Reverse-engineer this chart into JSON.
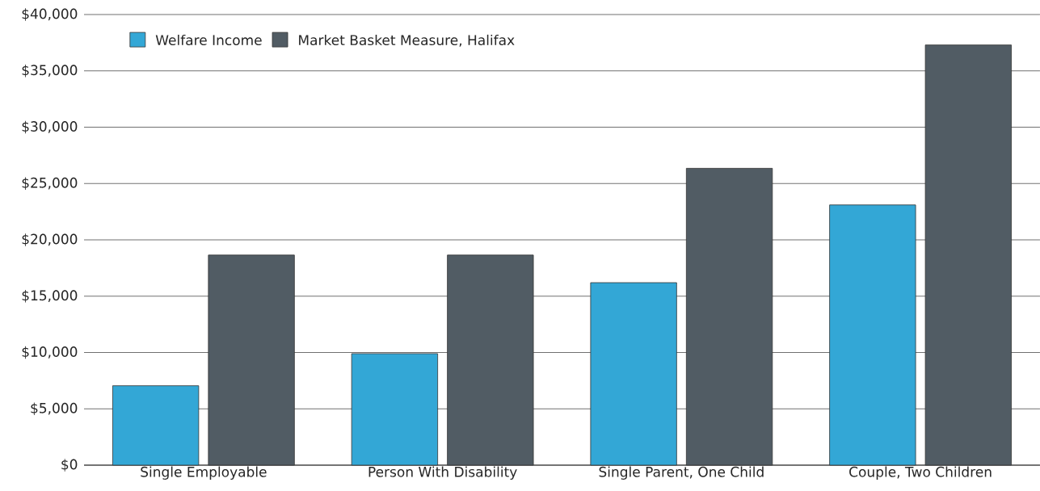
{
  "chart_data": {
    "type": "bar",
    "categories": [
      "Single Employable",
      "Person With Disability",
      "Single Parent, One Child",
      "Couple, Two Children"
    ],
    "series": [
      {
        "name": "Welfare Income",
        "color": "#33a7d6",
        "values": [
          7050,
          9900,
          16200,
          23100
        ]
      },
      {
        "name": "Market Basket Measure, Halifax",
        "color": "#515c64",
        "values": [
          18650,
          18650,
          26350,
          37300
        ]
      }
    ],
    "ylim": [
      0,
      40000
    ],
    "yticks": [
      {
        "value": 0,
        "label": "$0"
      },
      {
        "value": 5000,
        "label": "$5,000"
      },
      {
        "value": 10000,
        "label": "$10,000"
      },
      {
        "value": 15000,
        "label": "$15,000"
      },
      {
        "value": 20000,
        "label": "$20,000"
      },
      {
        "value": 25000,
        "label": "$25,000"
      },
      {
        "value": 30000,
        "label": "$30,000"
      },
      {
        "value": 35000,
        "label": "$35,000"
      },
      {
        "value": 40000,
        "label": "$40,000"
      }
    ],
    "grid": "y",
    "legend": "top left"
  }
}
